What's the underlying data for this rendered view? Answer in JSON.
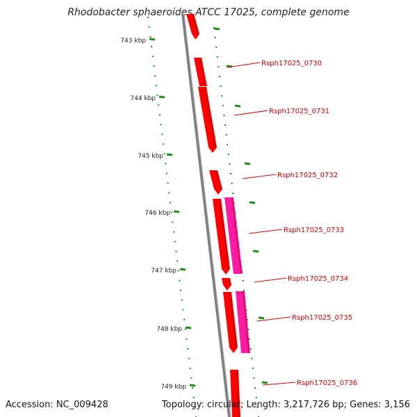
{
  "title": "Rhodobacter sphaeroides ATCC 17025, complete genome",
  "accession": "Accession: NC_009428",
  "topology": "Topology: circular; Length: 3,217,726 bp; Genes: 3,156",
  "colors": {
    "backbone": "#808080",
    "forward_gene": "#ff0000",
    "reverse_gene": "#ff1aa3",
    "ticks": "#1a8c1a",
    "label": "#cc0000"
  },
  "scale_labels": [
    "743 kbp",
    "744 kbp",
    "745 kbp",
    "746 kbp",
    "747 kbp",
    "748 kbp",
    "749 kbp"
  ],
  "gene_labels": [
    "Rsph17025_0730",
    "Rsph17025_0731",
    "Rsph17025_0732",
    "Rsph17025_0733",
    "Rsph17025_0734",
    "Rsph17025_0735",
    "Rsph17025_0736"
  ]
}
